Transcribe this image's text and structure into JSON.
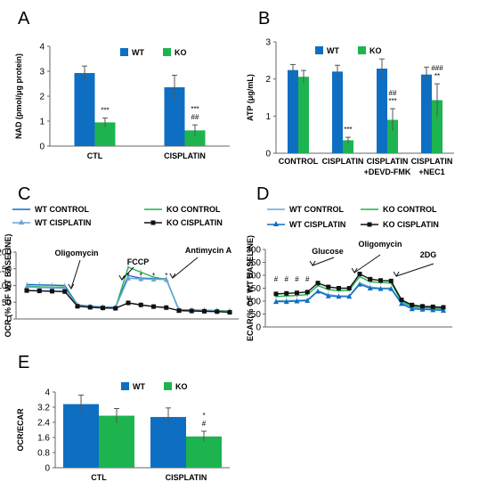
{
  "colors": {
    "wt": "#0E6FC2",
    "ko": "#1DB450",
    "ko_light": "#7ED6B0",
    "wt_light": "#6BA4D8"
  },
  "chart_data": [
    {
      "id": "A",
      "panel_label": "A",
      "type": "bar",
      "ylabel": "NAD (pmol/μg protein)",
      "ylim": [
        0,
        4
      ],
      "yticks": [
        0,
        1,
        2,
        3,
        4
      ],
      "categories": [
        "CTL",
        "CISPLATIN"
      ],
      "series": [
        {
          "name": "WT",
          "values": [
            2.93,
            2.36
          ],
          "errors": [
            0.28,
            0.48
          ]
        },
        {
          "name": "KO",
          "values": [
            0.95,
            0.63
          ],
          "errors": [
            0.18,
            0.22
          ]
        }
      ],
      "annotations": [
        {
          "category": 0,
          "series": 1,
          "lines": [
            "***"
          ]
        },
        {
          "category": 1,
          "series": 1,
          "lines": [
            "***",
            "##"
          ]
        }
      ]
    },
    {
      "id": "B",
      "panel_label": "B",
      "type": "bar",
      "ylabel": "ATP (μg/mL)",
      "ylim": [
        0,
        3
      ],
      "yticks": [
        0,
        1,
        2,
        3
      ],
      "categories": [
        [
          "CONTROL"
        ],
        [
          "CISPLATIN"
        ],
        [
          "CISPLATIN",
          "+DEVD-FMK"
        ],
        [
          "CISPLATIN",
          "+NEC1"
        ]
      ],
      "series": [
        {
          "name": "WT",
          "values": [
            2.24,
            2.2,
            2.28,
            2.12
          ],
          "errors": [
            0.15,
            0.17,
            0.26,
            0.2
          ]
        },
        {
          "name": "KO",
          "values": [
            2.06,
            0.35,
            0.9,
            1.43
          ],
          "errors": [
            0.17,
            0.08,
            0.3,
            0.44
          ]
        }
      ],
      "annotations": [
        {
          "category": 1,
          "series": 1,
          "lines": [
            "***"
          ]
        },
        {
          "category": 2,
          "series": 1,
          "lines": [
            "##",
            "***"
          ]
        },
        {
          "category": 3,
          "series": 1,
          "lines": [
            "###",
            "**"
          ]
        }
      ]
    },
    {
      "id": "C",
      "panel_label": "C",
      "type": "line",
      "ylabel": "OCR (% OF WT BASELINE)",
      "ylim": [
        0,
        200
      ],
      "yticks": [
        0,
        50,
        100,
        150,
        200
      ],
      "x": [
        1,
        2,
        3,
        4,
        5,
        6,
        7,
        8,
        9,
        10,
        11,
        12,
        13,
        14,
        15,
        16,
        17
      ],
      "series": [
        {
          "name": "WT CONTROL",
          "style": "wt",
          "marker": "none",
          "values": [
            103,
            102,
            101,
            100,
            42,
            38,
            36,
            35,
            130,
            122,
            121,
            120,
            26,
            26,
            25,
            24,
            23
          ]
        },
        {
          "name": "KO CONTROL",
          "style": "ko",
          "marker": "none",
          "values": [
            98,
            96,
            95,
            95,
            40,
            36,
            34,
            33,
            155,
            140,
            125,
            118,
            28,
            27,
            26,
            25,
            24
          ]
        },
        {
          "name": "WT CISPLATIN",
          "style": "wt_light",
          "marker": "triangle",
          "values": [
            96,
            94,
            93,
            92,
            40,
            37,
            35,
            34,
            122,
            120,
            119,
            118,
            26,
            25,
            25,
            24,
            23
          ]
        },
        {
          "name": "KO CISPLATIN",
          "style": "black",
          "marker": "square",
          "values": [
            85,
            84,
            83,
            82,
            38,
            35,
            33,
            32,
            48,
            42,
            37,
            34,
            25,
            24,
            23,
            22,
            20
          ]
        }
      ],
      "events": [
        {
          "label": "Oligomycin",
          "x": 4.5
        },
        {
          "label": "FCCP",
          "x": 8.5
        },
        {
          "label": "Antimycin A",
          "x": 12.5
        }
      ],
      "significance": [
        {
          "x": 9,
          "text": "*"
        },
        {
          "x": 10,
          "text": "*"
        },
        {
          "x": 11,
          "text": "*"
        },
        {
          "x": 12,
          "text": "*"
        }
      ]
    },
    {
      "id": "D",
      "panel_label": "D",
      "type": "line",
      "ylabel": "ECAR(% OF WT BASELINE)",
      "ylim": [
        0,
        300
      ],
      "yticks": [
        0,
        50,
        100,
        150,
        200,
        250,
        300
      ],
      "x": [
        1,
        2,
        3,
        4,
        5,
        6,
        7,
        8,
        9,
        10,
        11,
        12,
        13,
        14,
        15,
        16,
        17
      ],
      "series": [
        {
          "name": "WT CONTROL",
          "style": "wt_light",
          "marker": "none",
          "values": [
            102,
            102,
            103,
            105,
            140,
            125,
            120,
            120,
            170,
            155,
            150,
            150,
            95,
            75,
            72,
            70,
            68
          ]
        },
        {
          "name": "KO CONTROL",
          "style": "ko",
          "marker": "none",
          "values": [
            118,
            120,
            122,
            125,
            160,
            145,
            140,
            142,
            195,
            175,
            172,
            170,
            100,
            80,
            76,
            74,
            72
          ]
        },
        {
          "name": "WT CISPLATIN",
          "style": "wt",
          "marker": "triangle",
          "values": [
            98,
            98,
            100,
            102,
            138,
            120,
            118,
            118,
            165,
            150,
            148,
            148,
            90,
            70,
            68,
            66,
            64
          ]
        },
        {
          "name": "KO CISPLATIN",
          "style": "black",
          "marker": "square",
          "values": [
            128,
            130,
            132,
            135,
            170,
            155,
            150,
            150,
            205,
            185,
            180,
            178,
            105,
            85,
            80,
            78,
            76
          ]
        }
      ],
      "events": [
        {
          "label": "Glucose",
          "x": 4.5
        },
        {
          "label": "Oligomycin",
          "x": 8.5
        },
        {
          "label": "2DG",
          "x": 12.5
        }
      ],
      "significance": [
        {
          "x": 1,
          "text": "#"
        },
        {
          "x": 2,
          "text": "#"
        },
        {
          "x": 3,
          "text": "#"
        },
        {
          "x": 4,
          "text": "#"
        }
      ]
    },
    {
      "id": "E",
      "panel_label": "E",
      "type": "bar",
      "ylabel": "OCR/ECAR",
      "ylim": [
        0,
        4
      ],
      "yticks": [
        0,
        0.8,
        1.6,
        2.4,
        3.2,
        4
      ],
      "ytick_labels": [
        "0",
        "0.8",
        "1.6",
        "2.4",
        "3.2",
        "4"
      ],
      "categories": [
        "CTL",
        "CISPLATIN"
      ],
      "series": [
        {
          "name": "WT",
          "values": [
            3.36,
            2.68
          ],
          "errors": [
            0.48,
            0.48
          ]
        },
        {
          "name": "KO",
          "values": [
            2.75,
            1.65
          ],
          "errors": [
            0.38,
            0.28
          ]
        }
      ],
      "annotations": [
        {
          "category": 1,
          "series": 1,
          "lines": [
            "*",
            "#"
          ]
        }
      ]
    }
  ]
}
